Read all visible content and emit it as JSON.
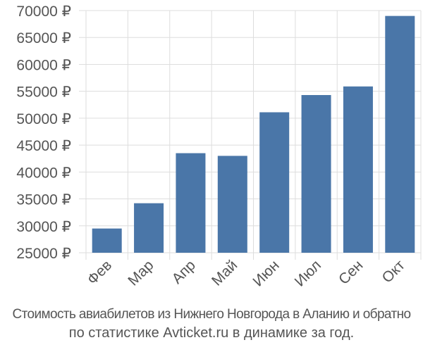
{
  "chart_data": {
    "type": "bar",
    "categories": [
      "Фев",
      "Мар",
      "Апр",
      "Май",
      "Июн",
      "Июл",
      "Сен",
      "Окт"
    ],
    "values": [
      29500,
      34200,
      43500,
      43000,
      51100,
      54300,
      55900,
      69000
    ],
    "ylim": [
      25000,
      70000
    ],
    "yticks": [
      "25000 ₽",
      "30000 ₽",
      "35000 ₽",
      "40000 ₽",
      "45000 ₽",
      "50000 ₽",
      "55000 ₽",
      "60000 ₽",
      "65000 ₽",
      "70000 ₽"
    ],
    "ytick_values": [
      25000,
      30000,
      35000,
      40000,
      45000,
      50000,
      55000,
      60000,
      65000,
      70000
    ],
    "grid": true,
    "bar_color": "#4a76a8",
    "grid_color": "#dddddd",
    "text_color": "#555555"
  },
  "caption": {
    "line1": "Стоимость авиабилетов из Нижнего Новгорода в Аланию и обратно",
    "line2": "по статистике Avticket.ru в динамике за год."
  }
}
